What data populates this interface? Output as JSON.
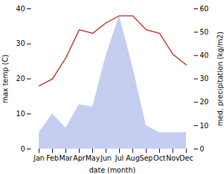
{
  "chart_data": {
    "type": "line",
    "xlabel": "date (month)",
    "ylabel": "max temp (C)",
    "y2label": "med. precipitation (kg/m2)",
    "categories": [
      "Jan",
      "Feb",
      "Mar",
      "Apr",
      "May",
      "Jun",
      "Jul",
      "Aug",
      "Sep",
      "Oct",
      "Nov",
      "Dec"
    ],
    "series": [
      {
        "type": "line",
        "color": "#c0392b",
        "values": [
          18,
          20,
          26,
          34,
          33,
          36,
          38,
          38,
          34,
          33,
          27,
          24
        ]
      },
      {
        "type": "area",
        "color": "#bbc5ee",
        "axis": "y2",
        "values": [
          7,
          15,
          9,
          19,
          18,
          40,
          57,
          35,
          10,
          7,
          7,
          7
        ]
      }
    ],
    "ylim": [
      0,
      40
    ],
    "yticks": [
      0,
      10,
      20,
      30,
      40
    ],
    "y2lim": [
      0,
      60
    ],
    "y2ticks": [
      0,
      10,
      20,
      30,
      40,
      50,
      60
    ],
    "grid": false
  }
}
